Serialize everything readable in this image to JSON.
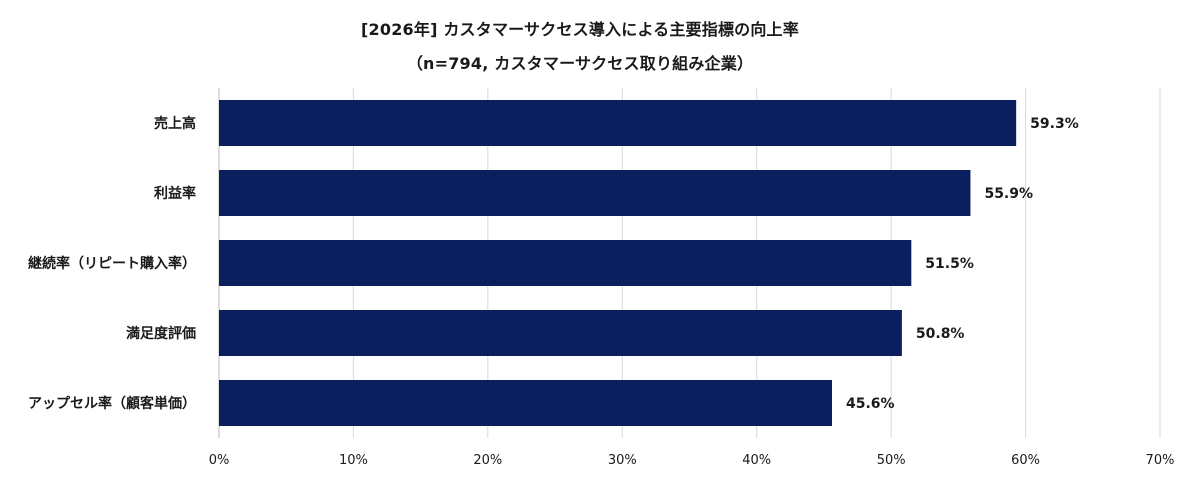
{
  "chart_data": {
    "type": "bar",
    "orientation": "horizontal",
    "title": "[2026年] カスタマーサクセス導入による主要指標の向上率",
    "subtitle": "（n=794, カスタマーサクセス取り組み企業）",
    "categories": [
      "売上高",
      "利益率",
      "継続率（リピート購入率）",
      "満足度評価",
      "アップセル率（顧客単価）"
    ],
    "values": [
      59.3,
      55.9,
      51.5,
      50.8,
      45.6
    ],
    "value_labels": [
      "59.3%",
      "55.9%",
      "51.5%",
      "50.8%",
      "45.6%"
    ],
    "xlim": [
      0,
      70
    ],
    "x_ticks": [
      0,
      10,
      20,
      30,
      40,
      50,
      60,
      70
    ],
    "x_tick_labels": [
      "0%",
      "10%",
      "20%",
      "30%",
      "40%",
      "50%",
      "60%",
      "70%"
    ],
    "grid": true,
    "bar_color": "#0b1f5e"
  }
}
